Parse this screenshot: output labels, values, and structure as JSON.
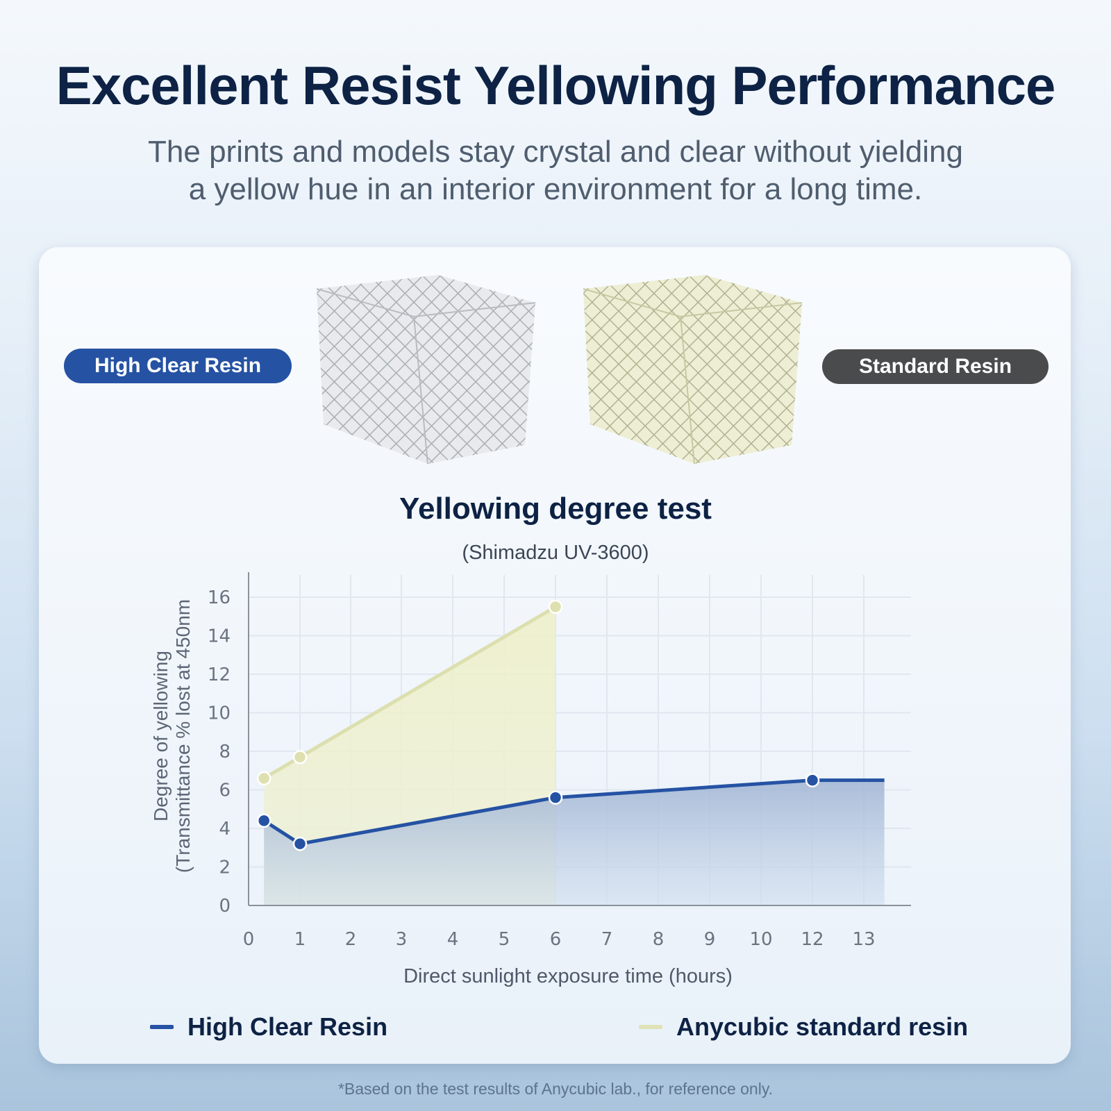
{
  "header": {
    "title": "Excellent Resist Yellowing Performance",
    "subtitle_line1": "The prints and models stay crystal and clear without yielding",
    "subtitle_line2": "a yellow hue in an interior environment for a long time."
  },
  "comparison": {
    "left_label": "High Clear Resin",
    "right_label": "Standard Resin",
    "left_color": "#2552a3",
    "right_color": "#4a4b4d"
  },
  "chart": {
    "title": "Yellowing degree test",
    "subtitle": "(Shimadzu UV-3600)",
    "ylabel_line1": "Degree of yellowing",
    "ylabel_line2": "(Transmittance % lost at 450nm",
    "xlabel": "Direct sunlight exposure time (hours)"
  },
  "legend": {
    "items": [
      {
        "label": "High Clear Resin",
        "color": "#2552a3"
      },
      {
        "label": "Anycubic standard resin",
        "color": "#dfe3b6"
      }
    ]
  },
  "footnote": "*Based on the test results of Anycubic lab., for reference only.",
  "chart_data": {
    "type": "area",
    "title": "Yellowing degree test",
    "subtitle": "(Shimadzu UV-3600)",
    "xlabel": "Direct sunlight exposure time (hours)",
    "ylabel": "Degree of yellowing (Transmittance % lost at 450nm",
    "x_tick_labels": [
      "0",
      "1",
      "2",
      "3",
      "4",
      "5",
      "6",
      "7",
      "8",
      "9",
      "10",
      "12",
      "13"
    ],
    "y_tick_labels": [
      "0",
      "2",
      "4",
      "6",
      "8",
      "10",
      "12",
      "14",
      "16"
    ],
    "ylim": [
      0,
      16
    ],
    "grid": true,
    "legend_position": "bottom",
    "series": [
      {
        "name": "High Clear Resin",
        "color": "#2552a3",
        "points": [
          {
            "x": 0.3,
            "y": 4.4
          },
          {
            "x": 1,
            "y": 3.2
          },
          {
            "x": 6,
            "y": 5.6
          },
          {
            "x": 12,
            "y": 6.5
          },
          {
            "x": 13.4,
            "y": 6.5
          }
        ]
      },
      {
        "name": "Anycubic standard resin",
        "color": "#dfe3b6",
        "points": [
          {
            "x": 0.3,
            "y": 6.6
          },
          {
            "x": 1,
            "y": 7.7
          },
          {
            "x": 6,
            "y": 15.5
          }
        ]
      }
    ]
  }
}
